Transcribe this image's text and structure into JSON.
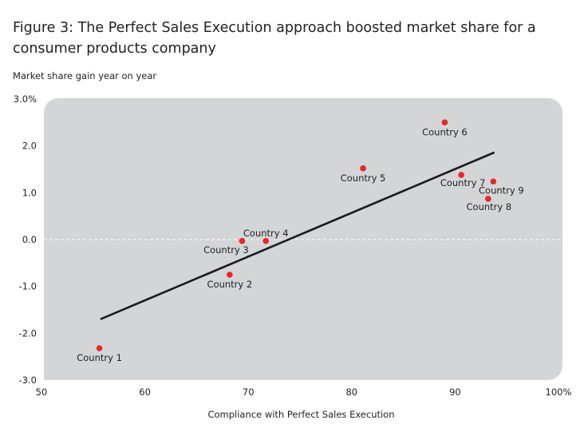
{
  "chart_data": {
    "type": "scatter",
    "title": "Figure 3: The Perfect Sales Execution approach boosted market share for a consumer products company",
    "ylabel": "Market share gain year on year",
    "xlabel": "Compliance with Perfect Sales Execution",
    "xlim": [
      50,
      100
    ],
    "ylim": [
      -3.0,
      3.0
    ],
    "x_ticks": [
      "50",
      "60",
      "70",
      "80",
      "90",
      "100%"
    ],
    "x_tick_values": [
      50,
      60,
      70,
      80,
      90,
      100
    ],
    "y_ticks": [
      "3.0%",
      "2.0",
      "1.0",
      "0.0",
      "-1.0",
      "-2.0",
      "-3.0"
    ],
    "y_tick_values": [
      3,
      2,
      1,
      0,
      -1,
      -2,
      -3
    ],
    "grid": false,
    "zero_line": "dashed",
    "plot_background": "#d4d5d7",
    "point_color": "#e8262a",
    "trend_color": "#1a1a1a",
    "points": [
      {
        "label": "Country 1",
        "x": 55.6,
        "y": -2.32,
        "label_pos": "below"
      },
      {
        "label": "Country 2",
        "x": 68.2,
        "y": -0.75,
        "label_pos": "below"
      },
      {
        "label": "Country 3",
        "x": 69.4,
        "y": -0.03,
        "label_pos": "below-left"
      },
      {
        "label": "Country 4",
        "x": 71.7,
        "y": -0.03,
        "label_pos": "above"
      },
      {
        "label": "Country 5",
        "x": 81.1,
        "y": 1.52,
        "label_pos": "below"
      },
      {
        "label": "Country 6",
        "x": 89.0,
        "y": 2.5,
        "label_pos": "below"
      },
      {
        "label": "Country 7",
        "x": 90.6,
        "y": 1.38,
        "label_pos": "below"
      },
      {
        "label": "Country 8",
        "x": 93.2,
        "y": 0.87,
        "label_pos": "below"
      },
      {
        "label": "Country 9",
        "x": 93.7,
        "y": 1.24,
        "label_pos": "below"
      }
    ],
    "trendline": {
      "x": [
        55.7,
        93.8
      ],
      "y": [
        -1.7,
        1.86
      ]
    }
  }
}
